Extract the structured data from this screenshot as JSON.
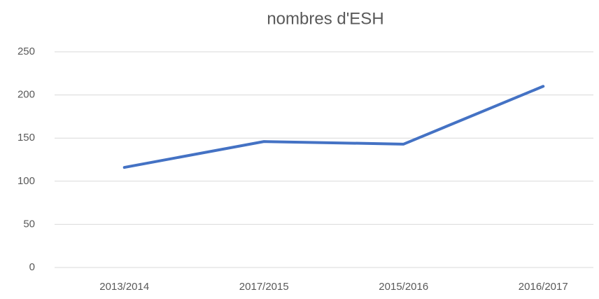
{
  "chart_data": {
    "type": "line",
    "title": "nombres d'ESH",
    "categories": [
      "2013/2014",
      "2017/2015",
      "2015/2016",
      "2016/2017"
    ],
    "values": [
      116,
      146,
      143,
      210
    ],
    "color": "#4472c4",
    "ylim": [
      0,
      250
    ],
    "yticks": [
      0,
      50,
      100,
      150,
      200,
      250
    ],
    "grid": true
  }
}
